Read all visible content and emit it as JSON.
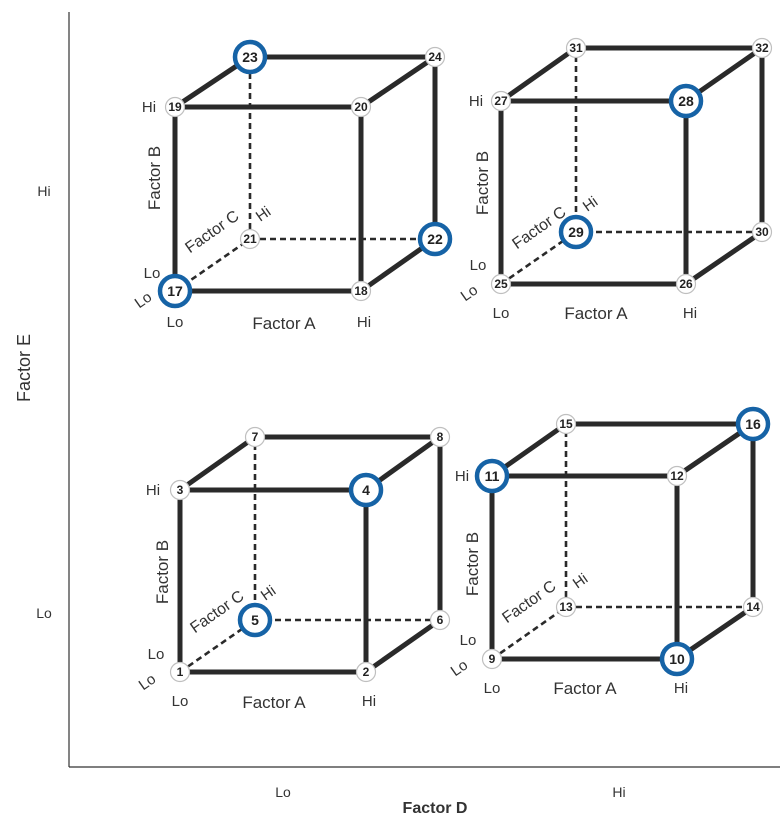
{
  "axes": {
    "x_title": "Factor D",
    "y_title": "Factor E",
    "x_ticks": [
      "Lo",
      "Hi"
    ],
    "y_ticks": [
      "Hi",
      "Lo"
    ]
  },
  "cube_labels": {
    "factor_a": "Factor A",
    "factor_b": "Factor B",
    "factor_c": "Factor C",
    "lo": "Lo",
    "hi": "Hi"
  },
  "cubes": [
    {
      "id": "cube-d-lo-e-hi",
      "runs": [
        17,
        18,
        19,
        20,
        21,
        22,
        23,
        24
      ],
      "highlighted": [
        17,
        22,
        23
      ]
    },
    {
      "id": "cube-d-hi-e-hi",
      "runs": [
        25,
        26,
        27,
        28,
        29,
        30,
        31,
        32
      ],
      "highlighted": [
        28,
        29
      ]
    },
    {
      "id": "cube-d-lo-e-lo",
      "runs": [
        1,
        2,
        3,
        4,
        5,
        6,
        7,
        8
      ],
      "highlighted": [
        4,
        5
      ]
    },
    {
      "id": "cube-d-hi-e-lo",
      "runs": [
        9,
        10,
        11,
        12,
        13,
        14,
        15,
        16
      ],
      "highlighted": [
        10,
        11,
        16
      ]
    }
  ],
  "colors": {
    "edge": "#2a2a2a",
    "highlight": "#1663a6",
    "axis": "#333333"
  }
}
